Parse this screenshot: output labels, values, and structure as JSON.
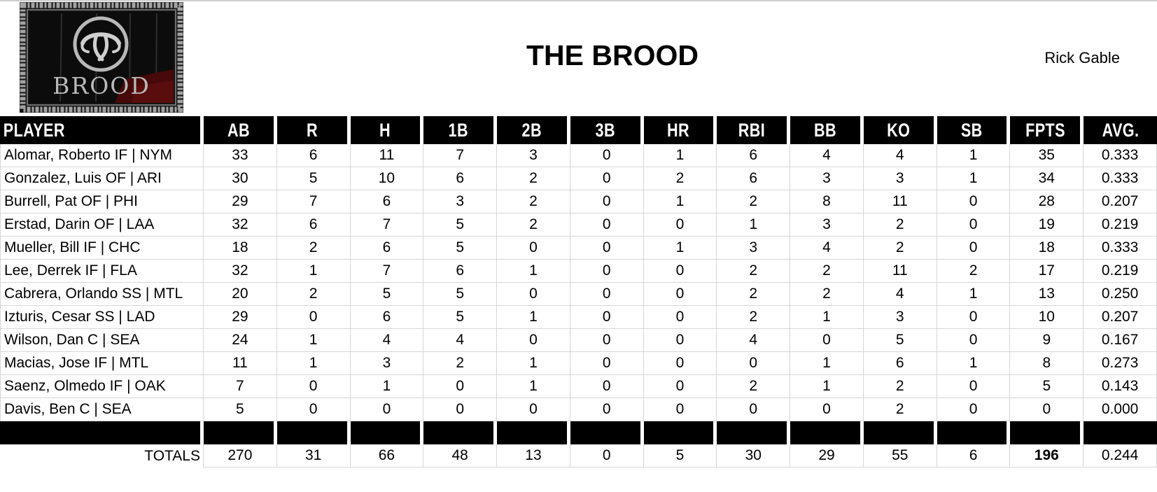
{
  "header": {
    "title": "THE BROOD",
    "owner": "Rick Gable",
    "logo": {
      "wordmark": "BROOD"
    }
  },
  "table": {
    "columns": [
      "PLAYER",
      "AB",
      "R",
      "H",
      "1B",
      "2B",
      "3B",
      "HR",
      "RBI",
      "BB",
      "KO",
      "SB",
      "FPTS",
      "AVG."
    ],
    "players": [
      {
        "name": "Alomar, Roberto IF | NYM",
        "stats": [
          "33",
          "6",
          "11",
          "7",
          "3",
          "0",
          "1",
          "6",
          "4",
          "4",
          "1",
          "35",
          "0.333"
        ]
      },
      {
        "name": "Gonzalez, Luis OF | ARI",
        "stats": [
          "30",
          "5",
          "10",
          "6",
          "2",
          "0",
          "2",
          "6",
          "3",
          "3",
          "1",
          "34",
          "0.333"
        ]
      },
      {
        "name": "Burrell, Pat OF | PHI",
        "stats": [
          "29",
          "7",
          "6",
          "3",
          "2",
          "0",
          "1",
          "2",
          "8",
          "11",
          "0",
          "28",
          "0.207"
        ]
      },
      {
        "name": "Erstad, Darin OF | LAA",
        "stats": [
          "32",
          "6",
          "7",
          "5",
          "2",
          "0",
          "0",
          "1",
          "3",
          "2",
          "0",
          "19",
          "0.219"
        ]
      },
      {
        "name": "Mueller, Bill IF | CHC",
        "stats": [
          "18",
          "2",
          "6",
          "5",
          "0",
          "0",
          "1",
          "3",
          "4",
          "2",
          "0",
          "18",
          "0.333"
        ]
      },
      {
        "name": "Lee, Derrek IF | FLA",
        "stats": [
          "32",
          "1",
          "7",
          "6",
          "1",
          "0",
          "0",
          "2",
          "2",
          "11",
          "2",
          "17",
          "0.219"
        ]
      },
      {
        "name": "Cabrera, Orlando SS | MTL",
        "stats": [
          "20",
          "2",
          "5",
          "5",
          "0",
          "0",
          "0",
          "2",
          "2",
          "4",
          "1",
          "13",
          "0.250"
        ]
      },
      {
        "name": "Izturis, Cesar SS | LAD",
        "stats": [
          "29",
          "0",
          "6",
          "5",
          "1",
          "0",
          "0",
          "2",
          "1",
          "3",
          "0",
          "10",
          "0.207"
        ]
      },
      {
        "name": "Wilson, Dan C | SEA",
        "stats": [
          "24",
          "1",
          "4",
          "4",
          "0",
          "0",
          "0",
          "4",
          "0",
          "5",
          "0",
          "9",
          "0.167"
        ]
      },
      {
        "name": "Macias, Jose IF | MTL",
        "stats": [
          "11",
          "1",
          "3",
          "2",
          "1",
          "0",
          "0",
          "0",
          "1",
          "6",
          "1",
          "8",
          "0.273"
        ]
      },
      {
        "name": "Saenz, Olmedo IF | OAK",
        "stats": [
          "7",
          "0",
          "1",
          "0",
          "1",
          "0",
          "0",
          "2",
          "1",
          "2",
          "0",
          "5",
          "0.143"
        ]
      },
      {
        "name": "Davis, Ben C | SEA",
        "stats": [
          "5",
          "0",
          "0",
          "0",
          "0",
          "0",
          "0",
          "0",
          "0",
          "2",
          "0",
          "0",
          "0.000"
        ]
      }
    ],
    "totals": {
      "label": "TOTALS",
      "stats": [
        "270",
        "31",
        "66",
        "48",
        "13",
        "0",
        "5",
        "30",
        "29",
        "55",
        "6",
        "196",
        "0.244"
      ]
    }
  },
  "colors": {
    "header_bg": "#000000",
    "header_text": "#ffffff",
    "grid_line": "#d7d7d7",
    "logo_red": "#470909",
    "logo_silver": "#b8b8b8"
  }
}
